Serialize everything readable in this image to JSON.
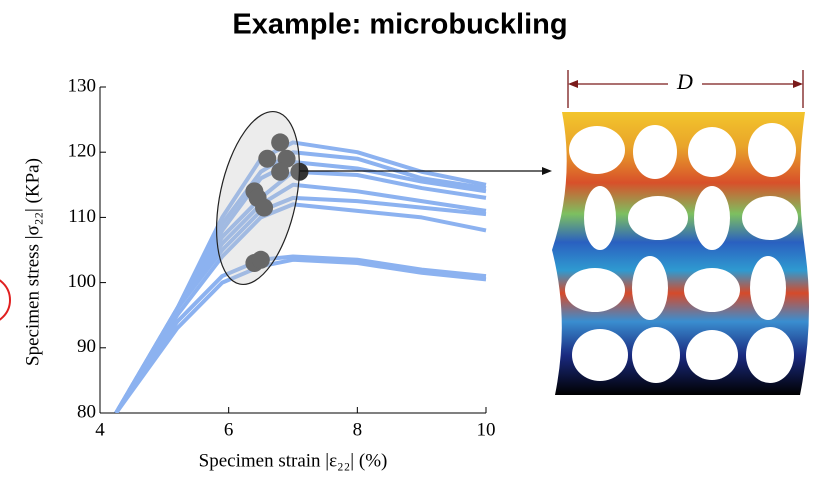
{
  "header": {
    "title": "Example: microbuckling"
  },
  "chart_data": {
    "type": "line",
    "xlabel": "Specimen strain |ε₂₂| (%)",
    "ylabel": "Specimen stress |σ₂₂| (KPa)",
    "x": [
      4.25,
      5.2,
      5.9,
      6.5,
      7,
      8,
      9,
      10
    ],
    "series": [
      {
        "color": "#8cb2f0",
        "values": [
          80,
          96,
          110,
          119,
          121.5,
          120,
          117,
          115
        ]
      },
      {
        "color": "#8cb2f0",
        "values": [
          80,
          96,
          109,
          117,
          120,
          119,
          116,
          114.5
        ]
      },
      {
        "color": "#8cb2f0",
        "values": [
          80,
          96,
          108,
          116,
          118.5,
          117.5,
          115.5,
          114
        ]
      },
      {
        "color": "#8cb2f0",
        "values": [
          80,
          96,
          107,
          113,
          117,
          116.5,
          114.5,
          113
        ]
      },
      {
        "color": "#8cb2f0",
        "values": [
          80,
          96,
          106,
          112,
          115,
          114,
          112.5,
          111
        ]
      },
      {
        "color": "#8cb2f0",
        "values": [
          80,
          96,
          105,
          111,
          113,
          112.5,
          111.5,
          110.5
        ]
      },
      {
        "color": "#8cb2f0",
        "values": [
          80,
          95,
          104,
          110,
          112,
          111,
          110,
          108
        ]
      },
      {
        "color": "#8cb2f0",
        "values": [
          80,
          94,
          101,
          103.5,
          104,
          103.5,
          102,
          101
        ]
      },
      {
        "color": "#8cb2f0",
        "values": [
          80,
          93,
          100,
          102.5,
          103.5,
          103,
          101.5,
          100.5
        ]
      }
    ],
    "points": {
      "color": "#333333",
      "x": [
        6.8,
        6.6,
        6.9,
        6.8,
        7.1,
        6.4,
        6.45,
        6.55,
        6.4,
        6.5
      ],
      "y": [
        121.5,
        119,
        119,
        117,
        117,
        114,
        113,
        111.5,
        103,
        103.5
      ]
    },
    "xlim": [
      4,
      10
    ],
    "xticks": [
      4,
      6,
      8,
      10
    ],
    "ylim": [
      80,
      130
    ],
    "yticks": [
      80,
      90,
      100,
      110,
      120,
      130
    ]
  },
  "figure": {
    "label": "D"
  }
}
